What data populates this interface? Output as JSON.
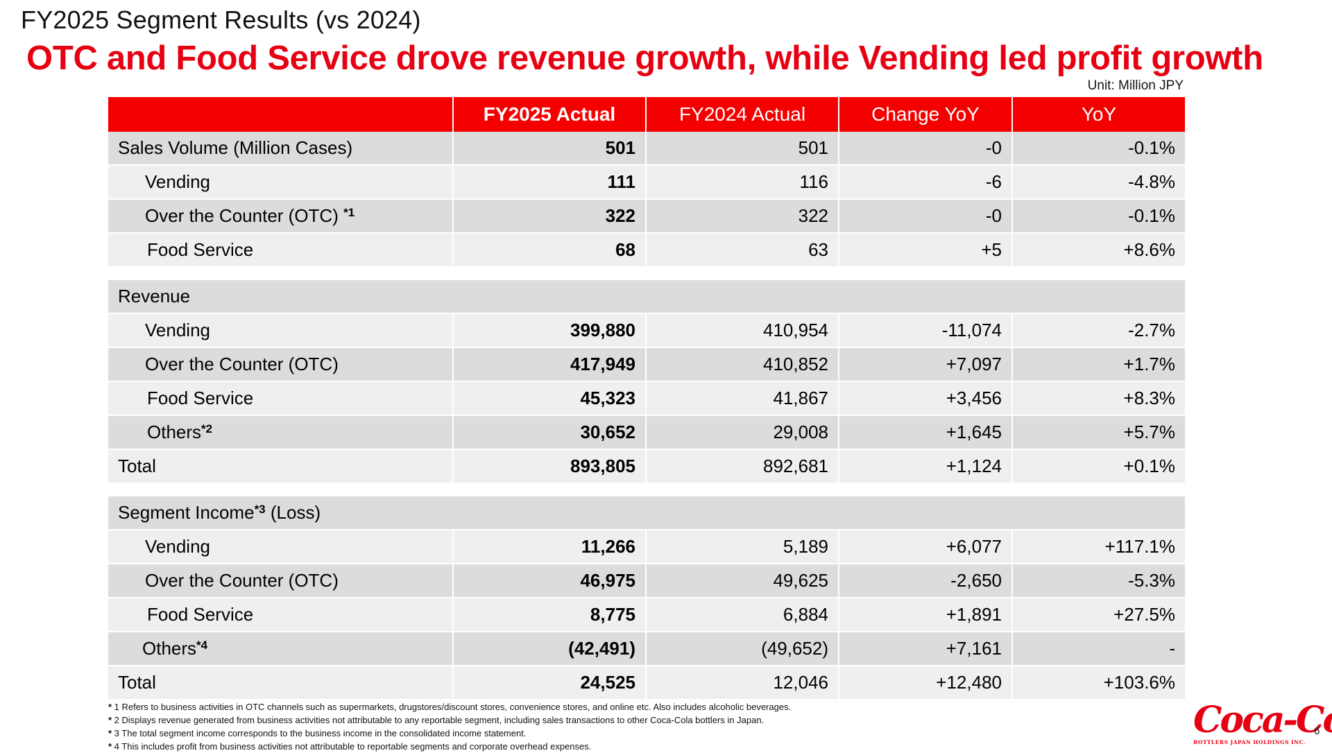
{
  "slide": {
    "section_title": "FY2025 Segment Results (vs 2024)",
    "headline": "OTC and Food Service drove revenue growth, while Vending led profit growth",
    "unit": "Unit: Million JPY",
    "page_number": "6"
  },
  "table": {
    "headers": [
      "",
      "FY2025 Actual",
      "FY2024 Actual",
      "Change YoY",
      "YoY"
    ],
    "sales": {
      "total": {
        "label": "Sales Volume (Million Cases)",
        "fy25": "501",
        "fy24": "501",
        "change": "-0",
        "yoy": "-0.1%"
      },
      "rows": [
        {
          "label": "Vending",
          "note": "",
          "fy25": "111",
          "fy24": "116",
          "change": "-6",
          "yoy": "-4.8%"
        },
        {
          "label": "Over the Counter (OTC) ",
          "note": "*1",
          "fy25": "322",
          "fy24": "322",
          "change": "-0",
          "yoy": "-0.1%"
        },
        {
          "label": "Food Service",
          "note": "",
          "fy25": "68",
          "fy24": "63",
          "change": "+5",
          "yoy": "+8.6%"
        }
      ]
    },
    "revenue": {
      "group_label": "Revenue",
      "rows": [
        {
          "label": "Vending",
          "note": "",
          "fy25": "399,880",
          "fy24": "410,954",
          "change": "-11,074",
          "yoy": "-2.7%"
        },
        {
          "label": "Over the Counter (OTC)",
          "note": "",
          "fy25": "417,949",
          "fy24": "410,852",
          "change": "+7,097",
          "yoy": "+1.7%"
        },
        {
          "label": "Food Service",
          "note": "",
          "fy25": "45,323",
          "fy24": "41,867",
          "change": "+3,456",
          "yoy": "+8.3%"
        },
        {
          "label": "Others",
          "note": "*2",
          "fy25": "30,652",
          "fy24": "29,008",
          "change": "+1,645",
          "yoy": "+5.7%"
        }
      ],
      "total": {
        "label": "Total",
        "fy25": "893,805",
        "fy24": "892,681",
        "change": "+1,124",
        "yoy": "+0.1%"
      }
    },
    "segment_income": {
      "group_label": "Segment Income",
      "group_note": "*3",
      "group_suffix": " (Loss)",
      "rows": [
        {
          "label": "Vending",
          "note": "",
          "fy25": "11,266",
          "fy24": "5,189",
          "change": "+6,077",
          "yoy": "+117.1%"
        },
        {
          "label": "Over the Counter (OTC)",
          "note": "",
          "fy25": "46,975",
          "fy24": "49,625",
          "change": "-2,650",
          "yoy": "-5.3%"
        },
        {
          "label": "Food Service",
          "note": "",
          "fy25": "8,775",
          "fy24": "6,884",
          "change": "+1,891",
          "yoy": "+27.5%"
        },
        {
          "label": "Others",
          "note": "*4",
          "fy25": "(42,491)",
          "fy24": "(49,652)",
          "change": "+7,161",
          "yoy": "-"
        }
      ],
      "total": {
        "label": "Total",
        "fy25": "24,525",
        "fy24": "12,046",
        "change": "+12,480",
        "yoy": "+103.6%"
      }
    }
  },
  "footnotes": [
    {
      "mark": "*",
      "text": " 1 Refers to business activities in OTC channels such as supermarkets, drugstores/discount stores, convenience stores, and online etc. Also includes alcoholic beverages."
    },
    {
      "mark": "*",
      "text": " 2 Displays revenue generated from business activities not attributable to any reportable segment, including sales transactions to other Coca-Cola bottlers in Japan."
    },
    {
      "mark": "*",
      "text": " 3 The total segment income corresponds to the business income in the consolidated income statement."
    },
    {
      "mark": "*",
      "text": " 4 This includes profit from business activities not attributable to reportable segments and corporate overhead expenses."
    }
  ],
  "logo": {
    "wordmark": "Coca-Cola",
    "subtitle": "BOTTLERS JAPAN HOLDINGS INC.",
    "color": "#e60012"
  },
  "colors": {
    "accent_red": "#e60012",
    "header_red": "#f50000",
    "row_dark": "#dcdcdc",
    "row_light": "#efefef"
  }
}
